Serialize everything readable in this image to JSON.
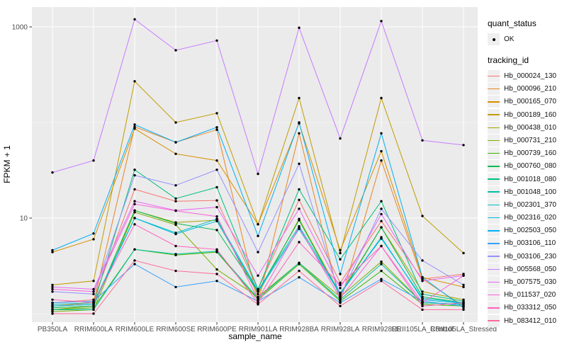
{
  "figure": {
    "panel_background": "#EBEBEB",
    "gridline_color": "#FFFFFF",
    "point_color": "#000000",
    "axis_text_color": "#4D4D4D",
    "legend_key_background": "#EFEFEF"
  },
  "legend": {
    "quant_status_title": "quant_status",
    "quant_status_items": [
      {
        "label": "OK",
        "marker": "black-point"
      }
    ],
    "tracking_id_title": "tracking_id"
  },
  "chart_data": {
    "type": "line",
    "title": "",
    "xlabel": "sample_name",
    "ylabel": "FPKM + 1",
    "y_scale": "log10",
    "y_ticks": [
      1000,
      10
    ],
    "y_minor_gridlines": [
      100,
      1
    ],
    "ylim": [
      0.85,
      1650
    ],
    "grid": true,
    "legend_position": "right",
    "marker": "black point on every observation",
    "categories": [
      "PB350LA",
      "RRIM600LA",
      "RRIM600LE",
      "RRIM600SE",
      "RRIM600PE",
      "RRIM901LA",
      "RRIM928BA",
      "RRIM928LA",
      "RRIM928LE",
      "RRII105LA_Control",
      "RRII105LA_Stressed"
    ],
    "series": [
      {
        "name": "Hb_000024_130",
        "color": "#F8766D",
        "values": [
          1.3,
          1.4,
          20,
          15,
          15.3,
          1.8,
          15.5,
          2.1,
          9.3,
          2.3,
          2.6
        ]
      },
      {
        "name": "Hb_000096_210",
        "color": "#E88526",
        "values": [
          1.2,
          1.3,
          90,
          62,
          84,
          1.3,
          77,
          1.3,
          40,
          2.3,
          1.2
        ]
      },
      {
        "name": "Hb_000165_070",
        "color": "#D89000",
        "values": [
          4.4,
          6.0,
          86,
          47,
          40,
          8.6,
          98,
          4.6,
          50,
          2.4,
          1.9
        ]
      },
      {
        "name": "Hb_000189_160",
        "color": "#C09B00",
        "values": [
          2.0,
          2.2,
          270,
          100,
          125,
          8.6,
          180,
          4.3,
          180,
          10.5,
          4.3
        ]
      },
      {
        "name": "Hb_000438_010",
        "color": "#A3A500",
        "values": [
          1.1,
          1.2,
          12,
          9.0,
          9.5,
          1.6,
          9.8,
          1.6,
          8.0,
          1.7,
          1.4
        ]
      },
      {
        "name": "Hb_000731_210",
        "color": "#7CAE00",
        "values": [
          1.05,
          1.1,
          11.5,
          8.5,
          2.9,
          1.5,
          3.4,
          1.5,
          3.5,
          1.3,
          1.25
        ]
      },
      {
        "name": "Hb_000739_160",
        "color": "#39B600",
        "values": [
          1.1,
          1.15,
          4.7,
          4.1,
          4.4,
          1.4,
          3.3,
          1.35,
          2.8,
          1.25,
          1.2
        ]
      },
      {
        "name": "Hb_000760_080",
        "color": "#00BB4E",
        "values": [
          1.15,
          1.2,
          12,
          8.8,
          7.5,
          1.7,
          9.5,
          1.55,
          8.0,
          1.5,
          1.3
        ]
      },
      {
        "name": "Hb_001018_080",
        "color": "#00BF7D",
        "values": [
          1.2,
          1.25,
          32,
          16,
          21,
          1.8,
          20,
          3.7,
          15,
          1.6,
          1.35
        ]
      },
      {
        "name": "Hb_001048_100",
        "color": "#00C1A3",
        "values": [
          1.1,
          1.1,
          4.7,
          4.2,
          4.5,
          1.45,
          3.4,
          1.4,
          3.3,
          1.3,
          1.25
        ]
      },
      {
        "name": "Hb_002301_370",
        "color": "#00BFC4",
        "values": [
          1.25,
          1.3,
          10,
          7.0,
          9.8,
          1.75,
          8.2,
          1.65,
          6.1,
          1.45,
          1.3
        ]
      },
      {
        "name": "Hb_002316_020",
        "color": "#00BAE0",
        "values": [
          1.2,
          1.25,
          10,
          6.8,
          9.3,
          1.7,
          7.7,
          1.6,
          6.3,
          1.4,
          1.28
        ]
      },
      {
        "name": "Hb_002503_050",
        "color": "#00B0F6",
        "values": [
          4.6,
          6.9,
          95,
          62,
          89,
          6.5,
          100,
          2.6,
          77,
          2.4,
          1.15
        ]
      },
      {
        "name": "Hb_003106_110",
        "color": "#35A2FF",
        "values": [
          1.3,
          1.35,
          3.3,
          1.9,
          2.2,
          1.35,
          2.4,
          1.3,
          2.3,
          1.35,
          1.2
        ]
      },
      {
        "name": "Hb_003106_230",
        "color": "#9590FF",
        "values": [
          1.7,
          1.6,
          28,
          22,
          32,
          4.4,
          37,
          1.5,
          12.5,
          3.6,
          2.0
        ]
      },
      {
        "name": "Hb_005568_050",
        "color": "#C77CFF",
        "values": [
          30,
          40,
          1200,
          570,
          720,
          29,
          980,
          68,
          1150,
          65,
          58
        ]
      },
      {
        "name": "Hb_007575_030",
        "color": "#E76BF3",
        "values": [
          1.9,
          1.8,
          15,
          12,
          13,
          2.5,
          12.5,
          1.85,
          11,
          2.2,
          2.5
        ]
      },
      {
        "name": "Hb_011537_020",
        "color": "#FA62DB",
        "values": [
          1.8,
          1.7,
          14,
          11.9,
          10.4,
          1.4,
          8.0,
          1.45,
          5.1,
          1.3,
          2.5
        ]
      },
      {
        "name": "Hb_033312_050",
        "color": "#FF62BC",
        "values": [
          1.4,
          1.3,
          8.6,
          5.1,
          4.7,
          1.3,
          5.6,
          2.0,
          5.1,
          1.2,
          1.3
        ]
      },
      {
        "name": "Hb_083412_010",
        "color": "#FF6A98",
        "values": [
          1.0,
          1.0,
          3.6,
          2.8,
          2.6,
          1.25,
          2.8,
          1.2,
          2.2,
          1.1,
          1.1
        ]
      }
    ]
  }
}
